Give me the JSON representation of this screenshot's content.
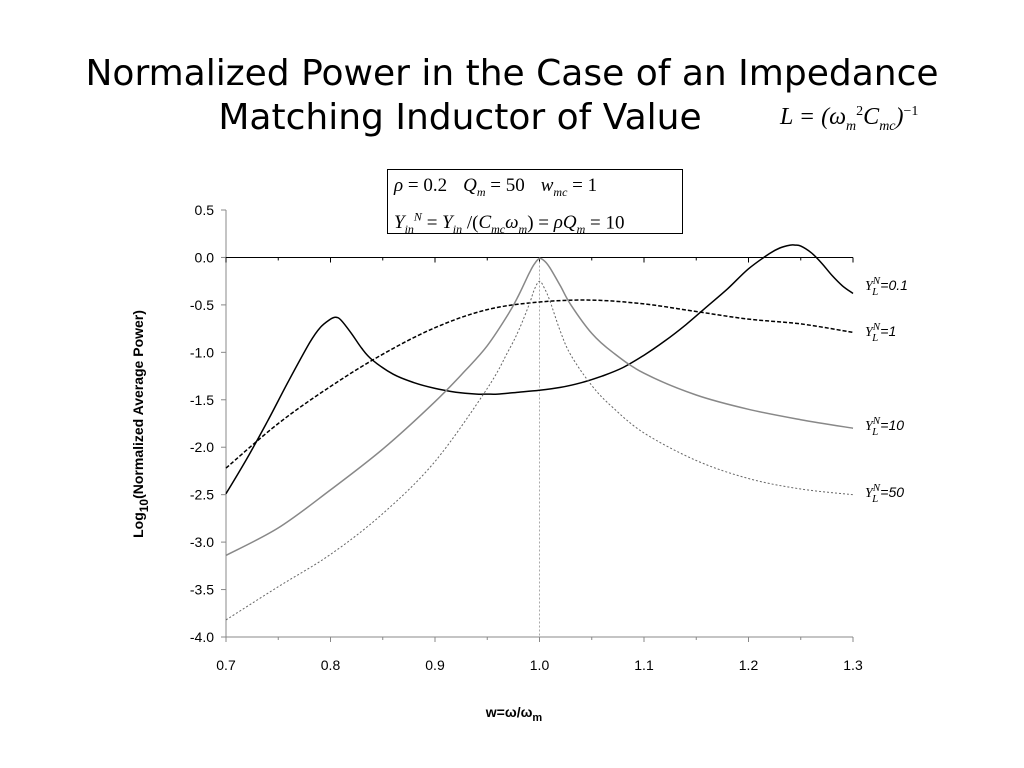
{
  "title": {
    "line1": "Normalized Power in the Case of an Impedance",
    "line2": "Matching Inductor of Value"
  },
  "formula": "L = (ω_m^2 C_mc)^-1",
  "parameters": {
    "line1": "ρ = 0.2   Q_m = 50   w_mc = 1",
    "line2": "Y_in^N = Y_in /(C_mc ω_m) = ρQ_m = 10"
  },
  "chart_data": {
    "type": "line",
    "xlabel": "w=ω/ω_m",
    "ylabel": "Log10(Normalized Average Power)",
    "xlim": [
      0.7,
      1.3
    ],
    "ylim": [
      -4.0,
      0.5
    ],
    "x_ticks": [
      "0.7",
      "0.8",
      "0.9",
      "1.0",
      "1.1",
      "1.2",
      "1.3"
    ],
    "y_ticks": [
      "0.5",
      "0.0",
      "-0.5",
      "-1.0",
      "-1.5",
      "-2.0",
      "-2.5",
      "-3.0",
      "-3.5",
      "-4.0"
    ],
    "grid": false,
    "reference_line": {
      "x": 1.0,
      "style": "dotted"
    },
    "series": [
      {
        "name": "Y_L^N=0.1",
        "label": "=0.1",
        "color": "#000000",
        "style": "solid",
        "x": [
          0.7,
          0.72,
          0.74,
          0.76,
          0.78,
          0.79,
          0.8,
          0.805,
          0.81,
          0.82,
          0.83,
          0.84,
          0.86,
          0.88,
          0.9,
          0.92,
          0.94,
          0.95,
          0.96,
          0.98,
          1.0,
          1.02,
          1.04,
          1.06,
          1.08,
          1.1,
          1.12,
          1.14,
          1.16,
          1.18,
          1.2,
          1.22,
          1.23,
          1.24,
          1.245,
          1.25,
          1.26,
          1.27,
          1.28,
          1.29,
          1.3
        ],
        "y": [
          -2.49,
          -2.12,
          -1.72,
          -1.3,
          -0.9,
          -0.74,
          -0.65,
          -0.63,
          -0.66,
          -0.8,
          -0.96,
          -1.08,
          -1.23,
          -1.32,
          -1.38,
          -1.42,
          -1.44,
          -1.44,
          -1.44,
          -1.42,
          -1.4,
          -1.37,
          -1.32,
          -1.25,
          -1.16,
          -1.03,
          -0.88,
          -0.71,
          -0.52,
          -0.33,
          -0.12,
          0.04,
          0.1,
          0.13,
          0.13,
          0.12,
          0.05,
          -0.06,
          -0.19,
          -0.3,
          -0.38
        ]
      },
      {
        "name": "Y_L^N=1",
        "label": "=1",
        "color": "#000000",
        "style": "dashed",
        "x": [
          0.7,
          0.75,
          0.8,
          0.85,
          0.9,
          0.95,
          1.0,
          1.05,
          1.1,
          1.15,
          1.2,
          1.25,
          1.3
        ],
        "y": [
          -2.22,
          -1.75,
          -1.36,
          -1.02,
          -0.74,
          -0.55,
          -0.47,
          -0.45,
          -0.49,
          -0.57,
          -0.65,
          -0.7,
          -0.79
        ]
      },
      {
        "name": "Y_L^N=10",
        "label": "=10",
        "color": "#888888",
        "style": "solid",
        "x": [
          0.7,
          0.75,
          0.8,
          0.85,
          0.9,
          0.93,
          0.95,
          0.97,
          0.98,
          0.99,
          0.995,
          1.0,
          1.005,
          1.01,
          1.02,
          1.03,
          1.05,
          1.07,
          1.1,
          1.15,
          1.2,
          1.25,
          1.3
        ],
        "y": [
          -3.14,
          -2.85,
          -2.45,
          -2.02,
          -1.52,
          -1.18,
          -0.93,
          -0.6,
          -0.4,
          -0.17,
          -0.07,
          -0.01,
          -0.04,
          -0.11,
          -0.3,
          -0.5,
          -0.8,
          -1.0,
          -1.22,
          -1.45,
          -1.6,
          -1.71,
          -1.8
        ]
      },
      {
        "name": "Y_L^N=50",
        "label": "=50",
        "color": "#666666",
        "style": "dotted",
        "x": [
          0.7,
          0.75,
          0.8,
          0.85,
          0.9,
          0.95,
          0.97,
          0.98,
          0.99,
          0.995,
          1.0,
          1.005,
          1.01,
          1.02,
          1.03,
          1.05,
          1.07,
          1.1,
          1.15,
          1.2,
          1.25,
          1.3
        ],
        "y": [
          -3.82,
          -3.47,
          -3.13,
          -2.7,
          -2.15,
          -1.38,
          -0.99,
          -0.77,
          -0.5,
          -0.34,
          -0.25,
          -0.33,
          -0.46,
          -0.78,
          -1.03,
          -1.35,
          -1.58,
          -1.85,
          -2.14,
          -2.33,
          -2.44,
          -2.5
        ]
      }
    ]
  }
}
